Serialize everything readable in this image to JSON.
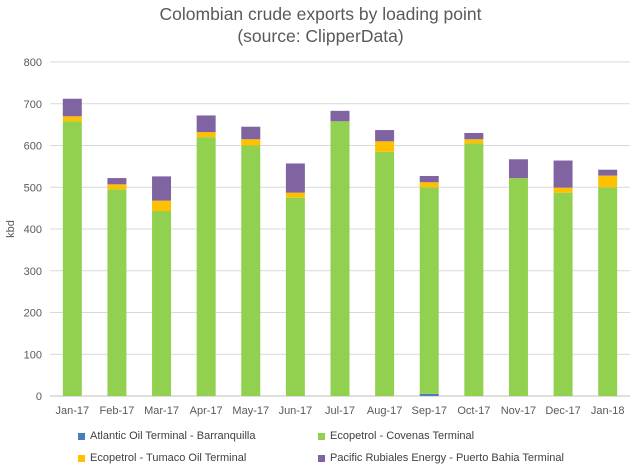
{
  "chart_data": {
    "type": "bar",
    "stacked": true,
    "title": "Colombian crude exports by loading point",
    "subtitle": "(source: ClipperData)",
    "xlabel": "",
    "ylabel": "kbd",
    "ylim": [
      0,
      800
    ],
    "yticks": [
      0,
      100,
      200,
      300,
      400,
      500,
      600,
      700,
      800
    ],
    "grid": true,
    "legend_position": "bottom",
    "categories": [
      "Jan-17",
      "Feb-17",
      "Mar-17",
      "Apr-17",
      "May-17",
      "Jun-17",
      "Jul-17",
      "Aug-17",
      "Sep-17",
      "Oct-17",
      "Nov-17",
      "Dec-17",
      "Jan-18"
    ],
    "series": [
      {
        "name": "Atlantic Oil Terminal - Barranquilla",
        "color": "#4a7ebb",
        "values": [
          0,
          0,
          0,
          0,
          0,
          0,
          0,
          0,
          5,
          0,
          0,
          0,
          0
        ]
      },
      {
        "name": "Ecopetrol - Covenas Terminal",
        "color": "#92d050",
        "values": [
          658,
          495,
          443,
          620,
          600,
          475,
          658,
          585,
          495,
          605,
          522,
          487,
          500
        ]
      },
      {
        "name": "Ecopetrol - Tumaco Oil Terminal",
        "color": "#ffc000",
        "values": [
          12,
          12,
          25,
          12,
          15,
          12,
          0,
          25,
          12,
          10,
          0,
          12,
          28
        ]
      },
      {
        "name": "Pacific Rubiales Energy - Puerto Bahia Terminal",
        "color": "#8064a2",
        "values": [
          42,
          15,
          58,
          40,
          30,
          70,
          25,
          27,
          15,
          15,
          45,
          65,
          14
        ]
      }
    ]
  }
}
